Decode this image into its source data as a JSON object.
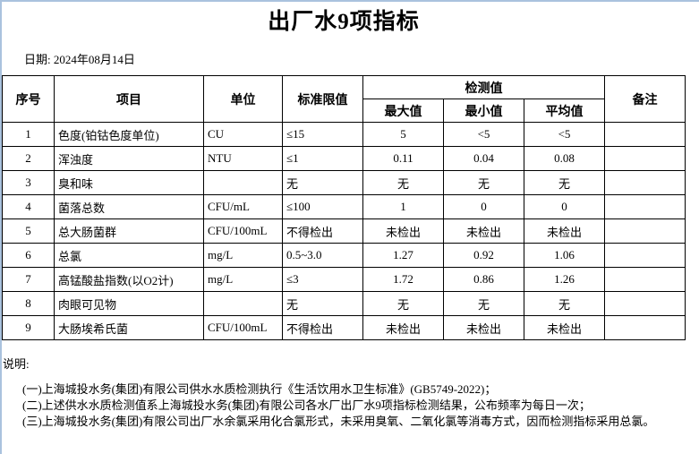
{
  "page": {
    "title": "出厂水9项指标",
    "date": "日期: 2024年08月14日"
  },
  "table": {
    "headers": {
      "no": "序号",
      "item": "项目",
      "unit": "单位",
      "limit": "标准限值",
      "detection": "检测值",
      "max": "最大值",
      "min": "最小值",
      "avg": "平均值",
      "remark": "备注"
    },
    "rows": [
      {
        "no": "1",
        "item": "色度(铂钴色度单位)",
        "unit": "CU",
        "limit": "≤15",
        "max": "5",
        "min": "<5",
        "avg": "<5",
        "remark": ""
      },
      {
        "no": "2",
        "item": "浑浊度",
        "unit": "NTU",
        "limit": "≤1",
        "max": "0.11",
        "min": "0.04",
        "avg": "0.08",
        "remark": ""
      },
      {
        "no": "3",
        "item": "臭和味",
        "unit": "",
        "limit": "无",
        "max": "无",
        "min": "无",
        "avg": "无",
        "remark": ""
      },
      {
        "no": "4",
        "item": "菌落总数",
        "unit": "CFU/mL",
        "limit": "≤100",
        "max": "1",
        "min": "0",
        "avg": "0",
        "remark": ""
      },
      {
        "no": "5",
        "item": "总大肠菌群",
        "unit": "CFU/100mL",
        "limit": "不得检出",
        "max": "未检出",
        "min": "未检出",
        "avg": "未检出",
        "remark": ""
      },
      {
        "no": "6",
        "item": "总氯",
        "unit": "mg/L",
        "limit": "0.5~3.0",
        "max": "1.27",
        "min": "0.92",
        "avg": "1.06",
        "remark": ""
      },
      {
        "no": "7",
        "item": "高锰酸盐指数(以O2计)",
        "unit": "mg/L",
        "limit": "≤3",
        "max": "1.72",
        "min": "0.86",
        "avg": "1.26",
        "remark": ""
      },
      {
        "no": "8",
        "item": "肉眼可见物",
        "unit": "",
        "limit": "无",
        "max": "无",
        "min": "无",
        "avg": "无",
        "remark": ""
      },
      {
        "no": "9",
        "item": "大肠埃希氏菌",
        "unit": "CFU/100mL",
        "limit": "不得检出",
        "max": "未检出",
        "min": "未检出",
        "avg": "未检出",
        "remark": ""
      }
    ]
  },
  "notes": {
    "heading": "说明:",
    "items": [
      "(一)上海城投水务(集团)有限公司供水水质检测执行《生活饮用水卫生标准》(GB5749-2022)；",
      "(二)上述供水水质检测值系上海城投水务(集团)有限公司各水厂出厂水9项指标检测结果，公布频率为每日一次；",
      "(三)上海城投水务(集团)有限公司出厂水余氯采用化合氯形式，未采用臭氧、二氧化氯等消毒方式，因而检测指标采用总氯。"
    ]
  },
  "colors": {
    "edge_blue": "#aac2de",
    "table_border": "#000000"
  }
}
